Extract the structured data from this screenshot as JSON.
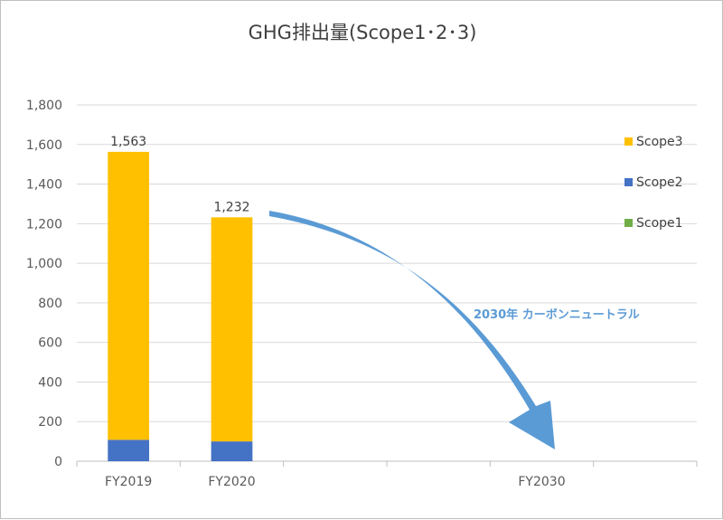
{
  "chart_data": {
    "type": "bar",
    "stacked": true,
    "title": "GHG排出量(Scope1･2･3)",
    "xlabel": "",
    "ylabel": "",
    "ylim": [
      0,
      1800
    ],
    "yticks": [
      0,
      200,
      400,
      600,
      800,
      1000,
      1200,
      1400,
      1600,
      1800
    ],
    "ytick_labels": [
      "0",
      "200",
      "400",
      "600",
      "800",
      "1,000",
      "1,200",
      "1,400",
      "1,600",
      "1,800"
    ],
    "categories": [
      "FY2019",
      "FY2020",
      "",
      "",
      "FY2030",
      ""
    ],
    "series": [
      {
        "name": "Scope1",
        "color": "#70ad47",
        "values": [
          0,
          0,
          null,
          null,
          null,
          null
        ]
      },
      {
        "name": "Scope2",
        "color": "#4472c4",
        "values": [
          108,
          100,
          null,
          null,
          null,
          null
        ]
      },
      {
        "name": "Scope3",
        "color": "#ffc000",
        "values": [
          1455,
          1132,
          null,
          null,
          null,
          null
        ]
      }
    ],
    "data_labels": [
      "1,563",
      "1,232",
      "",
      "",
      "",
      ""
    ],
    "legend": {
      "position": "right",
      "order": [
        "Scope3",
        "Scope2",
        "Scope1"
      ]
    },
    "grid": true,
    "annotation": {
      "text": "2030年 カーボンニュートラル",
      "color": "#5b9bd5"
    }
  }
}
